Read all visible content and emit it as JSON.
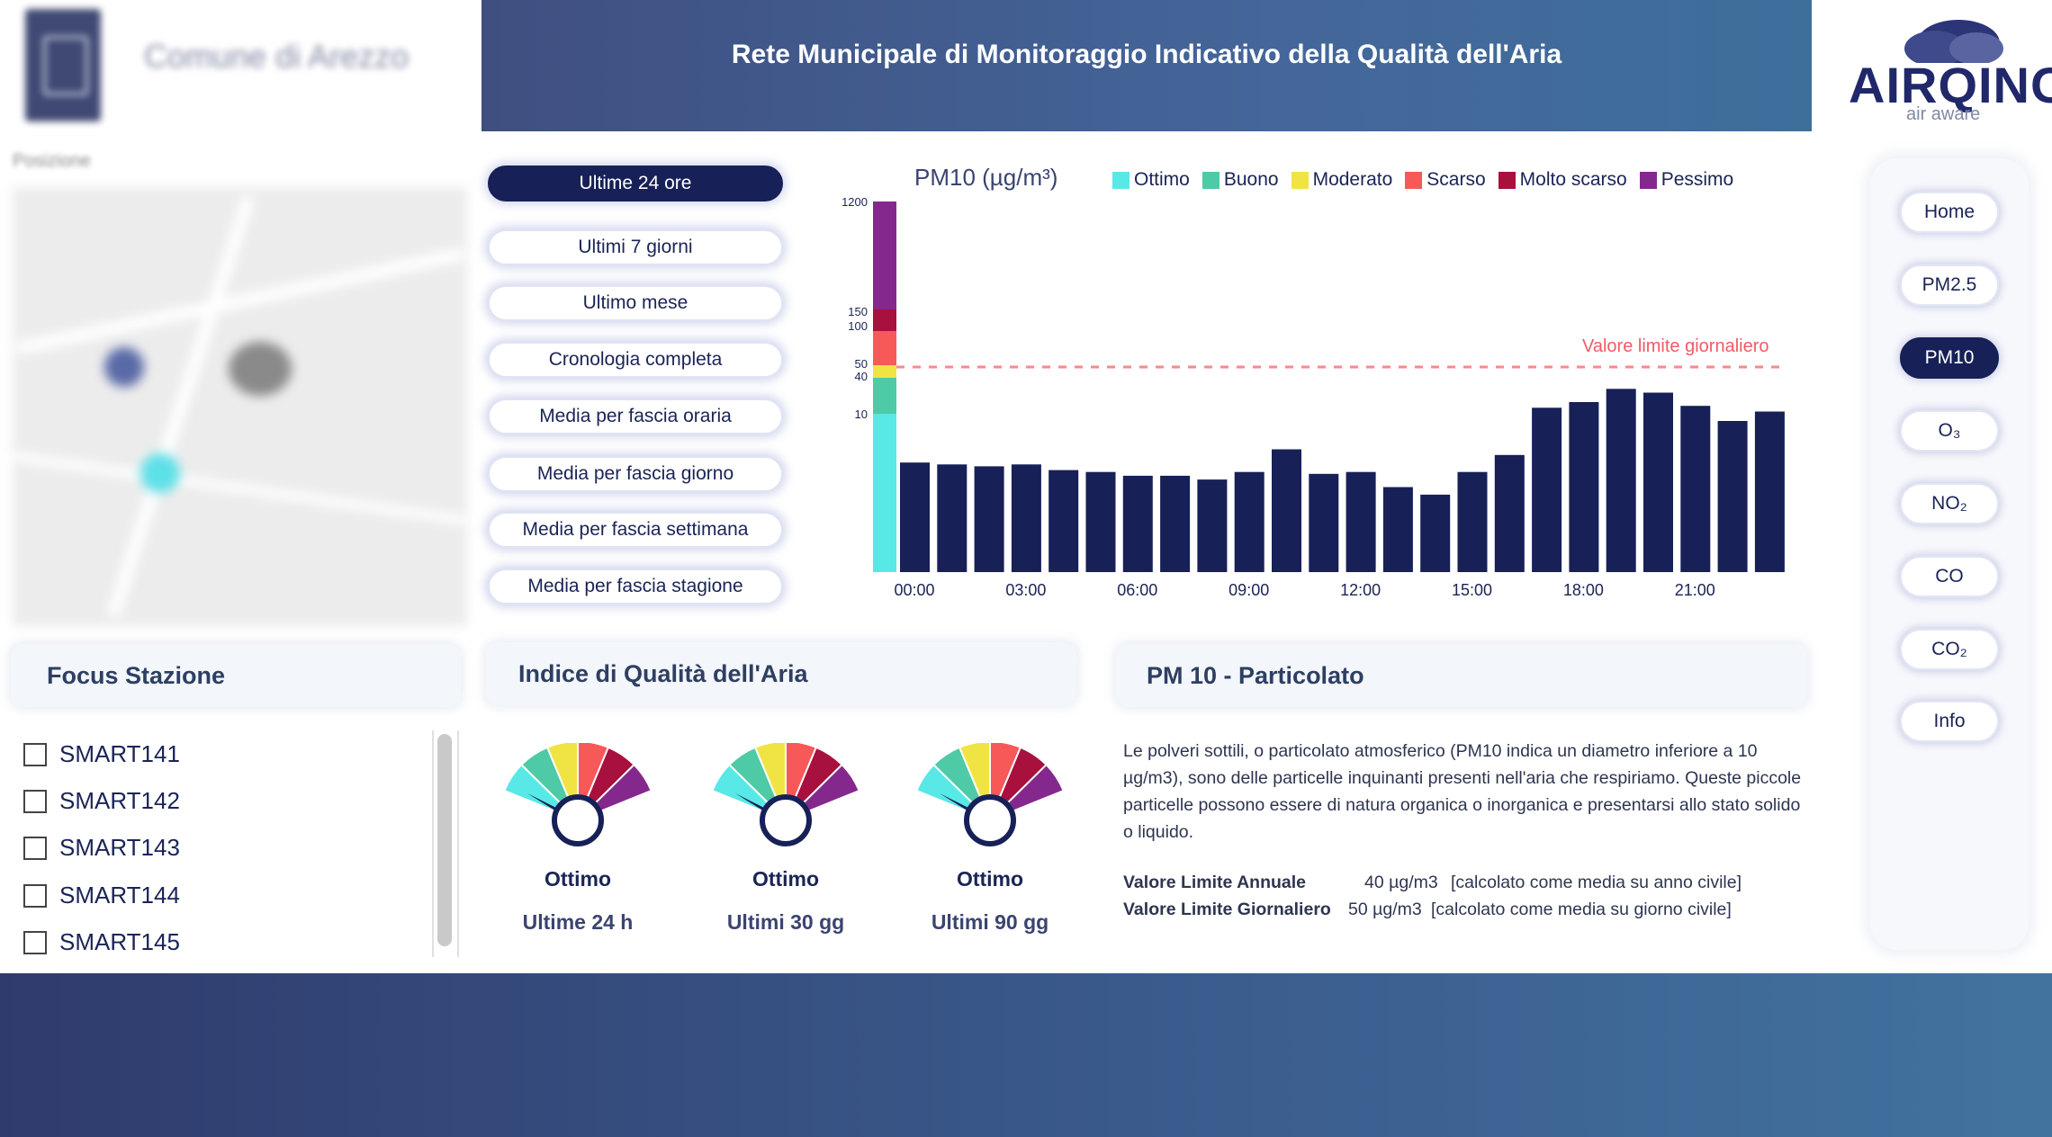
{
  "header": {
    "title": "Rete Municipale di Monitoraggio Indicativo della Qualità dell'Aria"
  },
  "municipality": {
    "name": "Comune di Arezzo",
    "map_title": "Posizione"
  },
  "brand": {
    "name": "AIRQINO",
    "tagline": "air aware"
  },
  "periods": [
    "Ultime 24 ore",
    "Ultimi 7 giorni",
    "Ultimo mese",
    "Cronologia completa",
    "Media per fascia oraria",
    "Media per fascia giorno",
    "Media per fascia settimana",
    "Media per fascia stagione"
  ],
  "active_period": "Ultime 24 ore",
  "chart_data": {
    "type": "bar",
    "title": "PM10 (µg/m³)",
    "legend": [
      {
        "label": "Ottimo",
        "color": "#58e8e6"
      },
      {
        "label": "Buono",
        "color": "#4ecaa6"
      },
      {
        "label": "Moderato",
        "color": "#f0e444"
      },
      {
        "label": "Scarso",
        "color": "#f75858"
      },
      {
        "label": "Molto scarso",
        "color": "#a8103e"
      },
      {
        "label": "Pessimo",
        "color": "#84288e"
      }
    ],
    "y_ticks": [
      "1200",
      "150",
      "100",
      "50",
      "40",
      "10"
    ],
    "x_ticks": [
      "00:00",
      "03:00",
      "06:00",
      "09:00",
      "12:00",
      "15:00",
      "18:00",
      "21:00"
    ],
    "limit": {
      "label": "Valore limite giornaliero",
      "value": 50
    },
    "bar_color": "#172057",
    "values": [
      29,
      28.5,
      28,
      28.5,
      27,
      26.5,
      25.5,
      25.5,
      24.5,
      26.5,
      32.5,
      26,
      26.5,
      22.5,
      20.5,
      26.5,
      31,
      43.5,
      45,
      48.5,
      47.5,
      44,
      40,
      42.5
    ]
  },
  "focus_station": {
    "title": "Focus Stazione",
    "stations": [
      "SMART141",
      "SMART142",
      "SMART143",
      "SMART144",
      "SMART145"
    ]
  },
  "aqi": {
    "title": "Indice di Qualità dell'Aria",
    "gauges": [
      {
        "status": "Ottimo",
        "period": "Ultime 24 h"
      },
      {
        "status": "Ottimo",
        "period": "Ultimi 30 gg"
      },
      {
        "status": "Ottimo",
        "period": "Ultimi 90 gg"
      }
    ]
  },
  "pollutant": {
    "title": "PM 10 - Particolato",
    "description": "Le polveri sottili, o particolato atmosferico (PM10 indica un diametro inferiore a 10 µg/m3), sono delle particelle inquinanti presenti nell'aria che respiriamo. Queste piccole particelle possono essere di natura organica o inorganica e presentarsi allo stato solido o liquido.",
    "limits": [
      {
        "label": "Valore Limite Annuale",
        "value": "40 µg/m3",
        "note": "[calcolato come media su anno civile]"
      },
      {
        "label": "Valore Limite Giornaliero",
        "value": "50 µg/m3",
        "note": "[calcolato come media su giorno civile]"
      }
    ]
  },
  "nav": [
    "Home",
    "PM2.5",
    "PM10",
    "O₃",
    "NO₂",
    "CO",
    "CO₂",
    "Info"
  ],
  "active_nav": "PM10"
}
